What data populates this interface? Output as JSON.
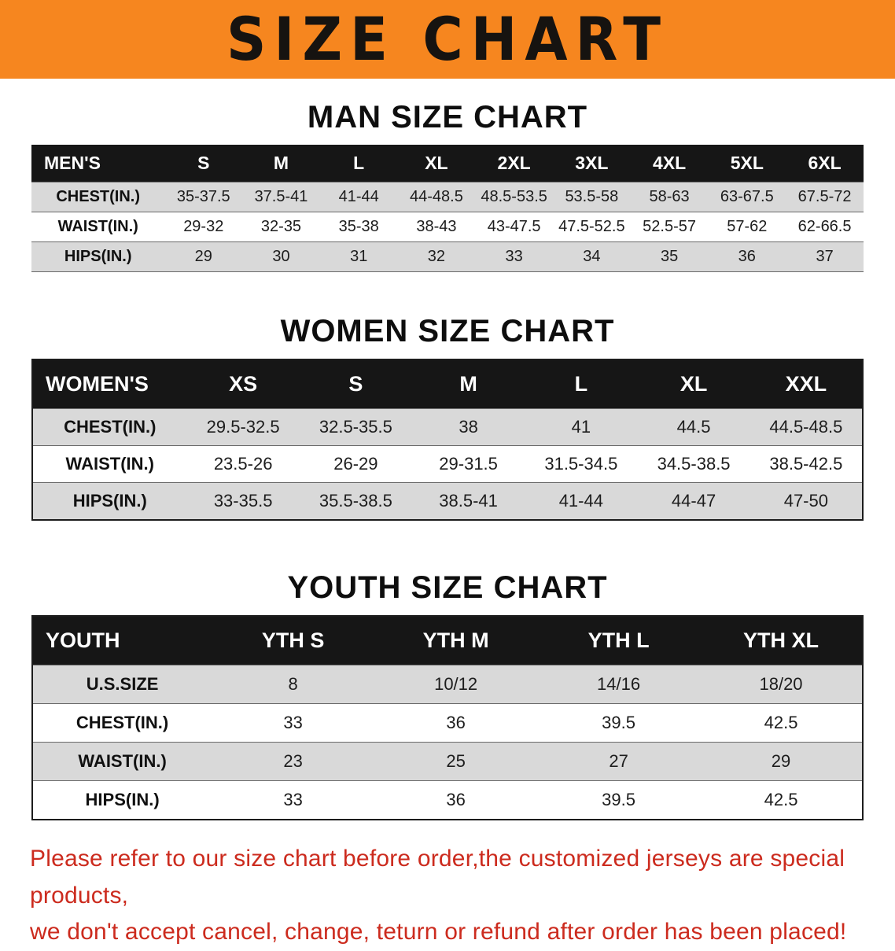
{
  "banner": {
    "title": "SIZE CHART",
    "bg_color": "#f6861f"
  },
  "sections": {
    "men": {
      "heading": "MAN SIZE CHART",
      "table": {
        "header": [
          "MEN'S",
          "S",
          "M",
          "L",
          "XL",
          "2XL",
          "3XL",
          "4XL",
          "5XL",
          "6XL"
        ],
        "rows": [
          [
            "CHEST(IN.)",
            "35-37.5",
            "37.5-41",
            "41-44",
            "44-48.5",
            "48.5-53.5",
            "53.5-58",
            "58-63",
            "63-67.5",
            "67.5-72"
          ],
          [
            "WAIST(IN.)",
            "29-32",
            "32-35",
            "35-38",
            "38-43",
            "43-47.5",
            "47.5-52.5",
            "52.5-57",
            "57-62",
            "62-66.5"
          ],
          [
            "HIPS(IN.)",
            "29",
            "30",
            "31",
            "32",
            "33",
            "34",
            "35",
            "36",
            "37"
          ]
        ]
      }
    },
    "women": {
      "heading": "WOMEN SIZE CHART",
      "table": {
        "header": [
          "WOMEN'S",
          "XS",
          "S",
          "M",
          "L",
          "XL",
          "XXL"
        ],
        "rows": [
          [
            "CHEST(IN.)",
            "29.5-32.5",
            "32.5-35.5",
            "38",
            "41",
            "44.5",
            "44.5-48.5"
          ],
          [
            "WAIST(IN.)",
            "23.5-26",
            "26-29",
            "29-31.5",
            "31.5-34.5",
            "34.5-38.5",
            "38.5-42.5"
          ],
          [
            "HIPS(IN.)",
            "33-35.5",
            "35.5-38.5",
            "38.5-41",
            "41-44",
            "44-47",
            "47-50"
          ]
        ]
      }
    },
    "youth": {
      "heading": "YOUTH SIZE CHART",
      "table": {
        "header": [
          "YOUTH",
          "YTH S",
          "YTH M",
          "YTH L",
          "YTH XL"
        ],
        "rows": [
          [
            "U.S.SIZE",
            "8",
            "10/12",
            "14/16",
            "18/20"
          ],
          [
            "CHEST(IN.)",
            "33",
            "36",
            "39.5",
            "42.5"
          ],
          [
            "WAIST(IN.)",
            "23",
            "25",
            "27",
            "29"
          ],
          [
            "HIPS(IN.)",
            "33",
            "36",
            "39.5",
            "42.5"
          ]
        ]
      }
    }
  },
  "disclaimer": {
    "line1": "Please refer to our size chart before order,the customized jerseys are special products,",
    "line2": "we don't accept cancel, change, teturn or refund after order has been placed!",
    "color": "#cc2b1e"
  }
}
